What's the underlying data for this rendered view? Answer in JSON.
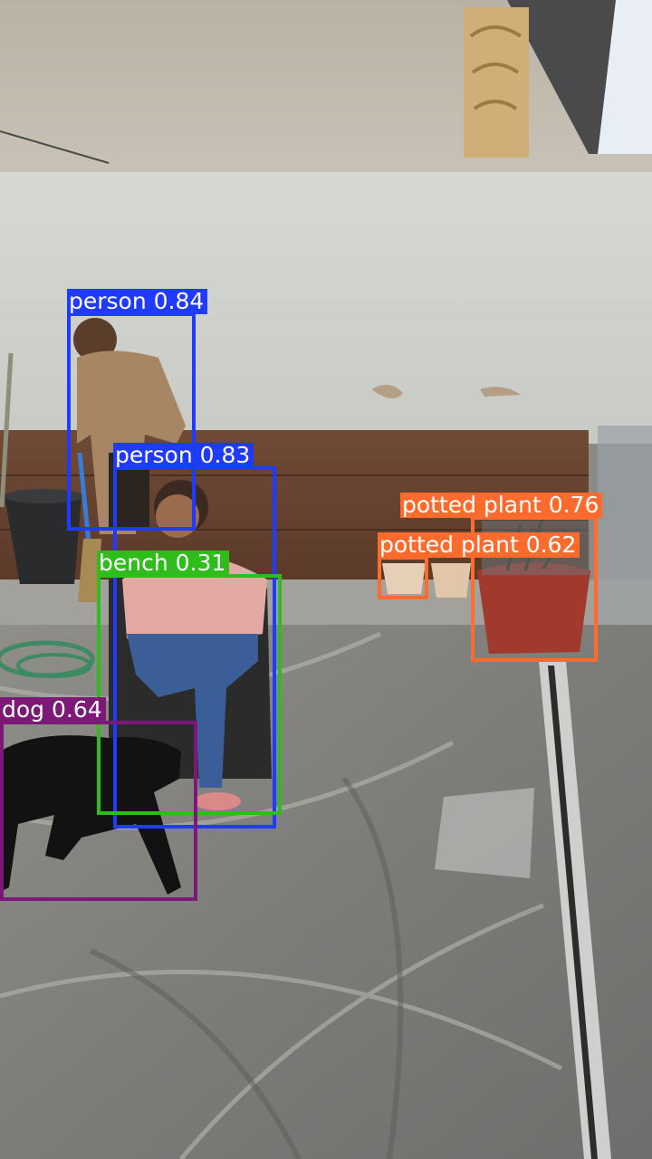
{
  "image": {
    "description_icon": "rooftop-scene-photo"
  },
  "detections": [
    {
      "label": "person",
      "score": "0.84",
      "text": "person 0.84",
      "color": "#1f3bff"
    },
    {
      "label": "person",
      "score": "0.83",
      "text": "person 0.83",
      "color": "#1f3bff"
    },
    {
      "label": "bench",
      "score": "0.31",
      "text": "bench 0.31",
      "color": "#2fbd1c"
    },
    {
      "label": "dog",
      "score": "0.64",
      "text": "dog 0.64",
      "color": "#7d1778"
    },
    {
      "label": "potted plant",
      "score": "0.76",
      "text": "potted plant 0.76",
      "color": "#ff6b2c"
    },
    {
      "label": "potted plant",
      "score": "0.62",
      "text": "potted plant 0.62",
      "color": "#ff6b2c"
    }
  ]
}
